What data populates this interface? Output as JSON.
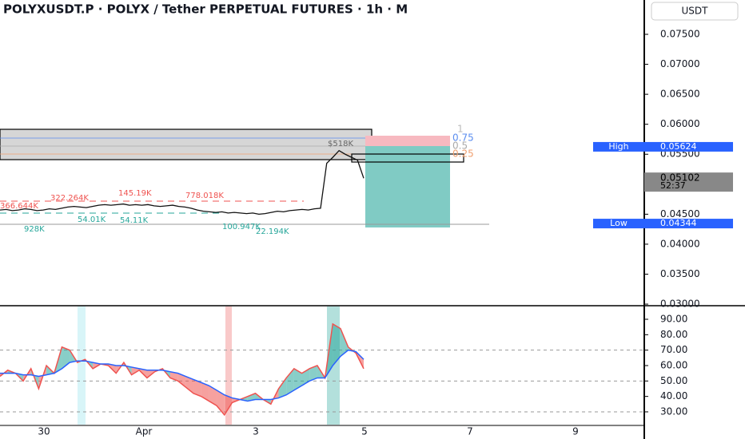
{
  "header": {
    "title": "POLYXUSDT.P · POLYX / Tether PERPETUAL FUTURES · 1h · M",
    "currency": "USDT"
  },
  "price_axis": {
    "ticks": [
      {
        "value": 0.075,
        "label": "0.07500"
      },
      {
        "value": 0.07,
        "label": "0.07000"
      },
      {
        "value": 0.065,
        "label": "0.06500"
      },
      {
        "value": 0.06,
        "label": "0.06000"
      },
      {
        "value": 0.055,
        "label": "0.05500"
      },
      {
        "value": 0.045,
        "label": "0.04500"
      },
      {
        "value": 0.04,
        "label": "0.04000"
      },
      {
        "value": 0.035,
        "label": "0.03500"
      },
      {
        "value": 0.03,
        "label": "0.03000"
      }
    ]
  },
  "badges": [
    {
      "name": "High",
      "value": 0.05624,
      "label": "0.05624"
    },
    {
      "name": "Low",
      "value": 0.04344,
      "label": "0.04344"
    }
  ],
  "current": {
    "value": 0.05102,
    "label": "0.05102",
    "countdown": "52:37"
  },
  "osc_axis": {
    "ticks": [
      {
        "value": 90,
        "label": "90.00"
      },
      {
        "value": 80,
        "label": "80.00"
      },
      {
        "value": 70,
        "label": "70.00"
      },
      {
        "value": 60,
        "label": "60.00"
      },
      {
        "value": 50,
        "label": "50.00"
      },
      {
        "value": 40,
        "label": "40.00"
      },
      {
        "value": 30,
        "label": "30.00"
      }
    ]
  },
  "x_axis": {
    "labels": [
      "30",
      "Apr",
      "3",
      "5",
      "7",
      "9"
    ]
  },
  "fib_labels": [
    "1",
    "0.75",
    "0.5",
    "0.25"
  ],
  "annotations": [
    "366.644K",
    "322.264K",
    "145.19K",
    "778.018K",
    "$518K",
    "54.01K",
    "54.11K",
    "100.947K",
    "22.194K",
    "928K"
  ],
  "price_series": {
    "values": [
      0.0457,
      0.0458,
      0.0456,
      0.0457,
      0.0459,
      0.0458,
      0.0456,
      0.0457,
      0.0459,
      0.0458,
      0.046,
      0.0462,
      0.0463,
      0.0462,
      0.0461,
      0.0463,
      0.0465,
      0.0466,
      0.0465,
      0.0466,
      0.0467,
      0.0465,
      0.0466,
      0.0465,
      0.0466,
      0.0464,
      0.0463,
      0.0464,
      0.0465,
      0.0463,
      0.0462,
      0.046,
      0.0457,
      0.0455,
      0.0454,
      0.0453,
      0.0454,
      0.0452,
      0.0453,
      0.0452,
      0.0451,
      0.0452,
      0.045,
      0.0451,
      0.0453,
      0.0455,
      0.0454,
      0.0456,
      0.0457,
      0.0458,
      0.0457,
      0.0459,
      0.046,
      0.0535,
      0.0545,
      0.0556,
      0.055,
      0.0545,
      0.054,
      0.051
    ]
  },
  "oscillator": {
    "values": [
      53,
      57,
      55,
      50,
      58,
      45,
      60,
      55,
      72,
      70,
      62,
      64,
      58,
      61,
      60,
      55,
      62,
      54,
      57,
      52,
      56,
      58,
      52,
      50,
      46,
      42,
      40,
      37,
      34,
      28,
      36,
      38,
      40,
      42,
      38,
      35,
      45,
      52,
      58,
      55,
      58,
      60,
      52,
      87,
      84,
      72,
      68,
      58
    ],
    "ma": [
      55,
      55,
      55,
      54,
      54,
      53,
      54,
      55,
      58,
      62,
      63,
      63,
      62,
      61,
      61,
      60,
      60,
      59,
      58,
      57,
      57,
      57,
      56,
      55,
      53,
      51,
      49,
      47,
      44,
      41,
      39,
      38,
      37,
      38,
      38,
      38,
      39,
      41,
      44,
      47,
      50,
      52,
      52,
      60,
      66,
      70,
      69,
      64
    ]
  }
}
